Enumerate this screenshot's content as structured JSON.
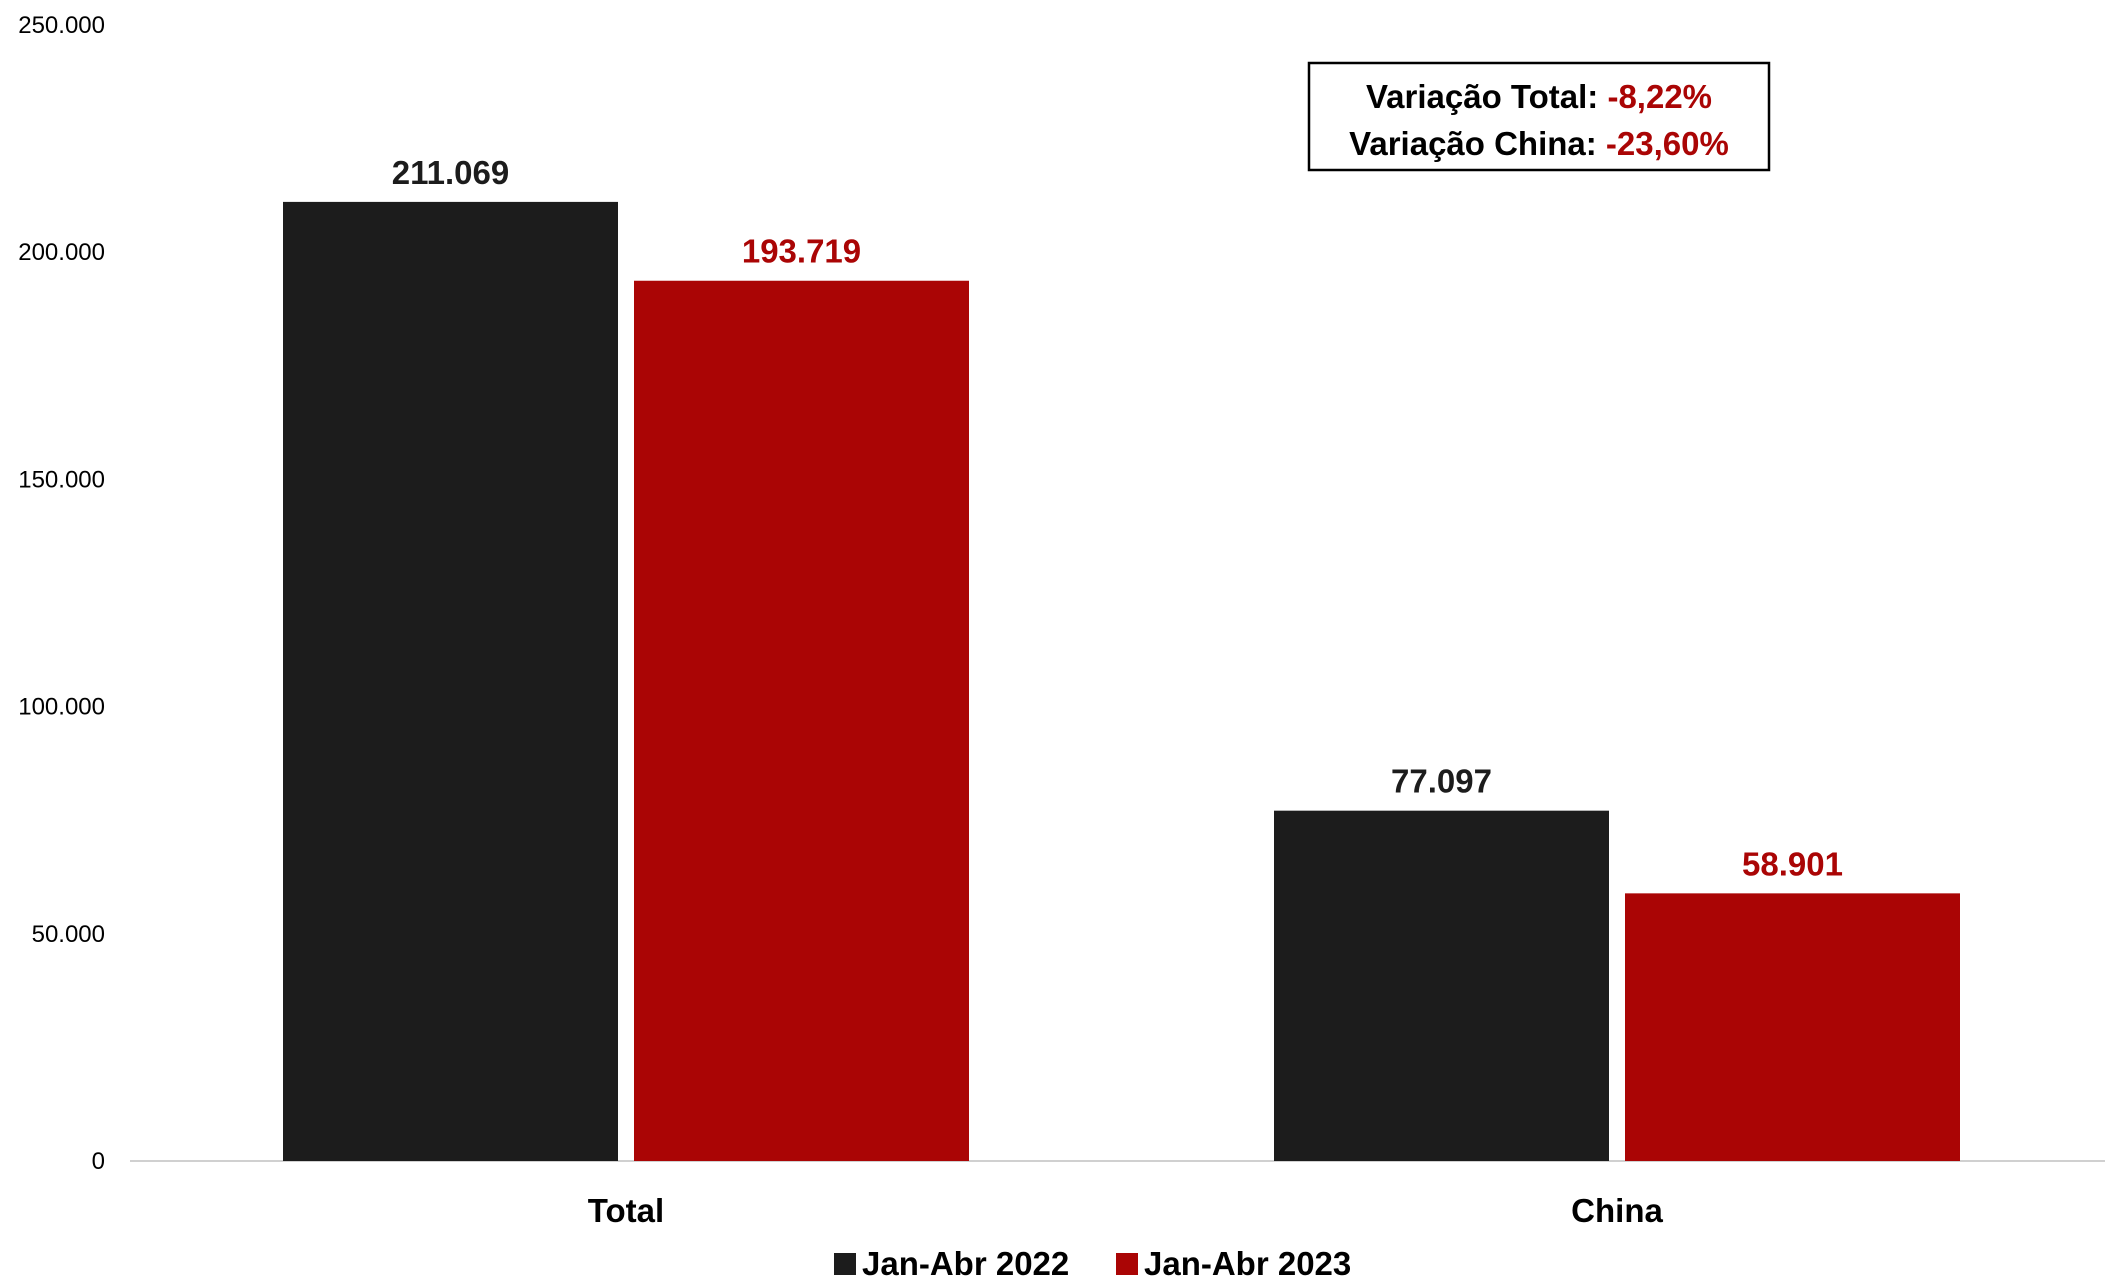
{
  "chart_data": {
    "type": "bar",
    "categories": [
      "Total",
      "China"
    ],
    "series": [
      {
        "name": "Jan-Abr 2022",
        "values": [
          211069,
          77097
        ],
        "labels": [
          "211.069",
          "77.097"
        ],
        "color": "#1c1c1c"
      },
      {
        "name": "Jan-Abr 2023",
        "values": [
          193719,
          58901
        ],
        "labels": [
          "193.719",
          "58.901"
        ],
        "color": "#aa0505"
      }
    ],
    "ylim": [
      0,
      250000
    ],
    "yticks": [
      0,
      50000,
      100000,
      150000,
      200000,
      250000
    ],
    "ytick_labels": [
      "0",
      "50.000",
      "100.000",
      "150.000",
      "200.000",
      "250.000"
    ],
    "grid": false,
    "legend": "bottom",
    "title": "",
    "xlabel": "",
    "ylabel": "",
    "annotation": {
      "lines": [
        {
          "label": "Variação Total: ",
          "value": "-8,22%"
        },
        {
          "label": "Variação China: ",
          "value": "-23,60%"
        }
      ],
      "label_color": "#000000",
      "value_color": "#aa0505"
    }
  }
}
